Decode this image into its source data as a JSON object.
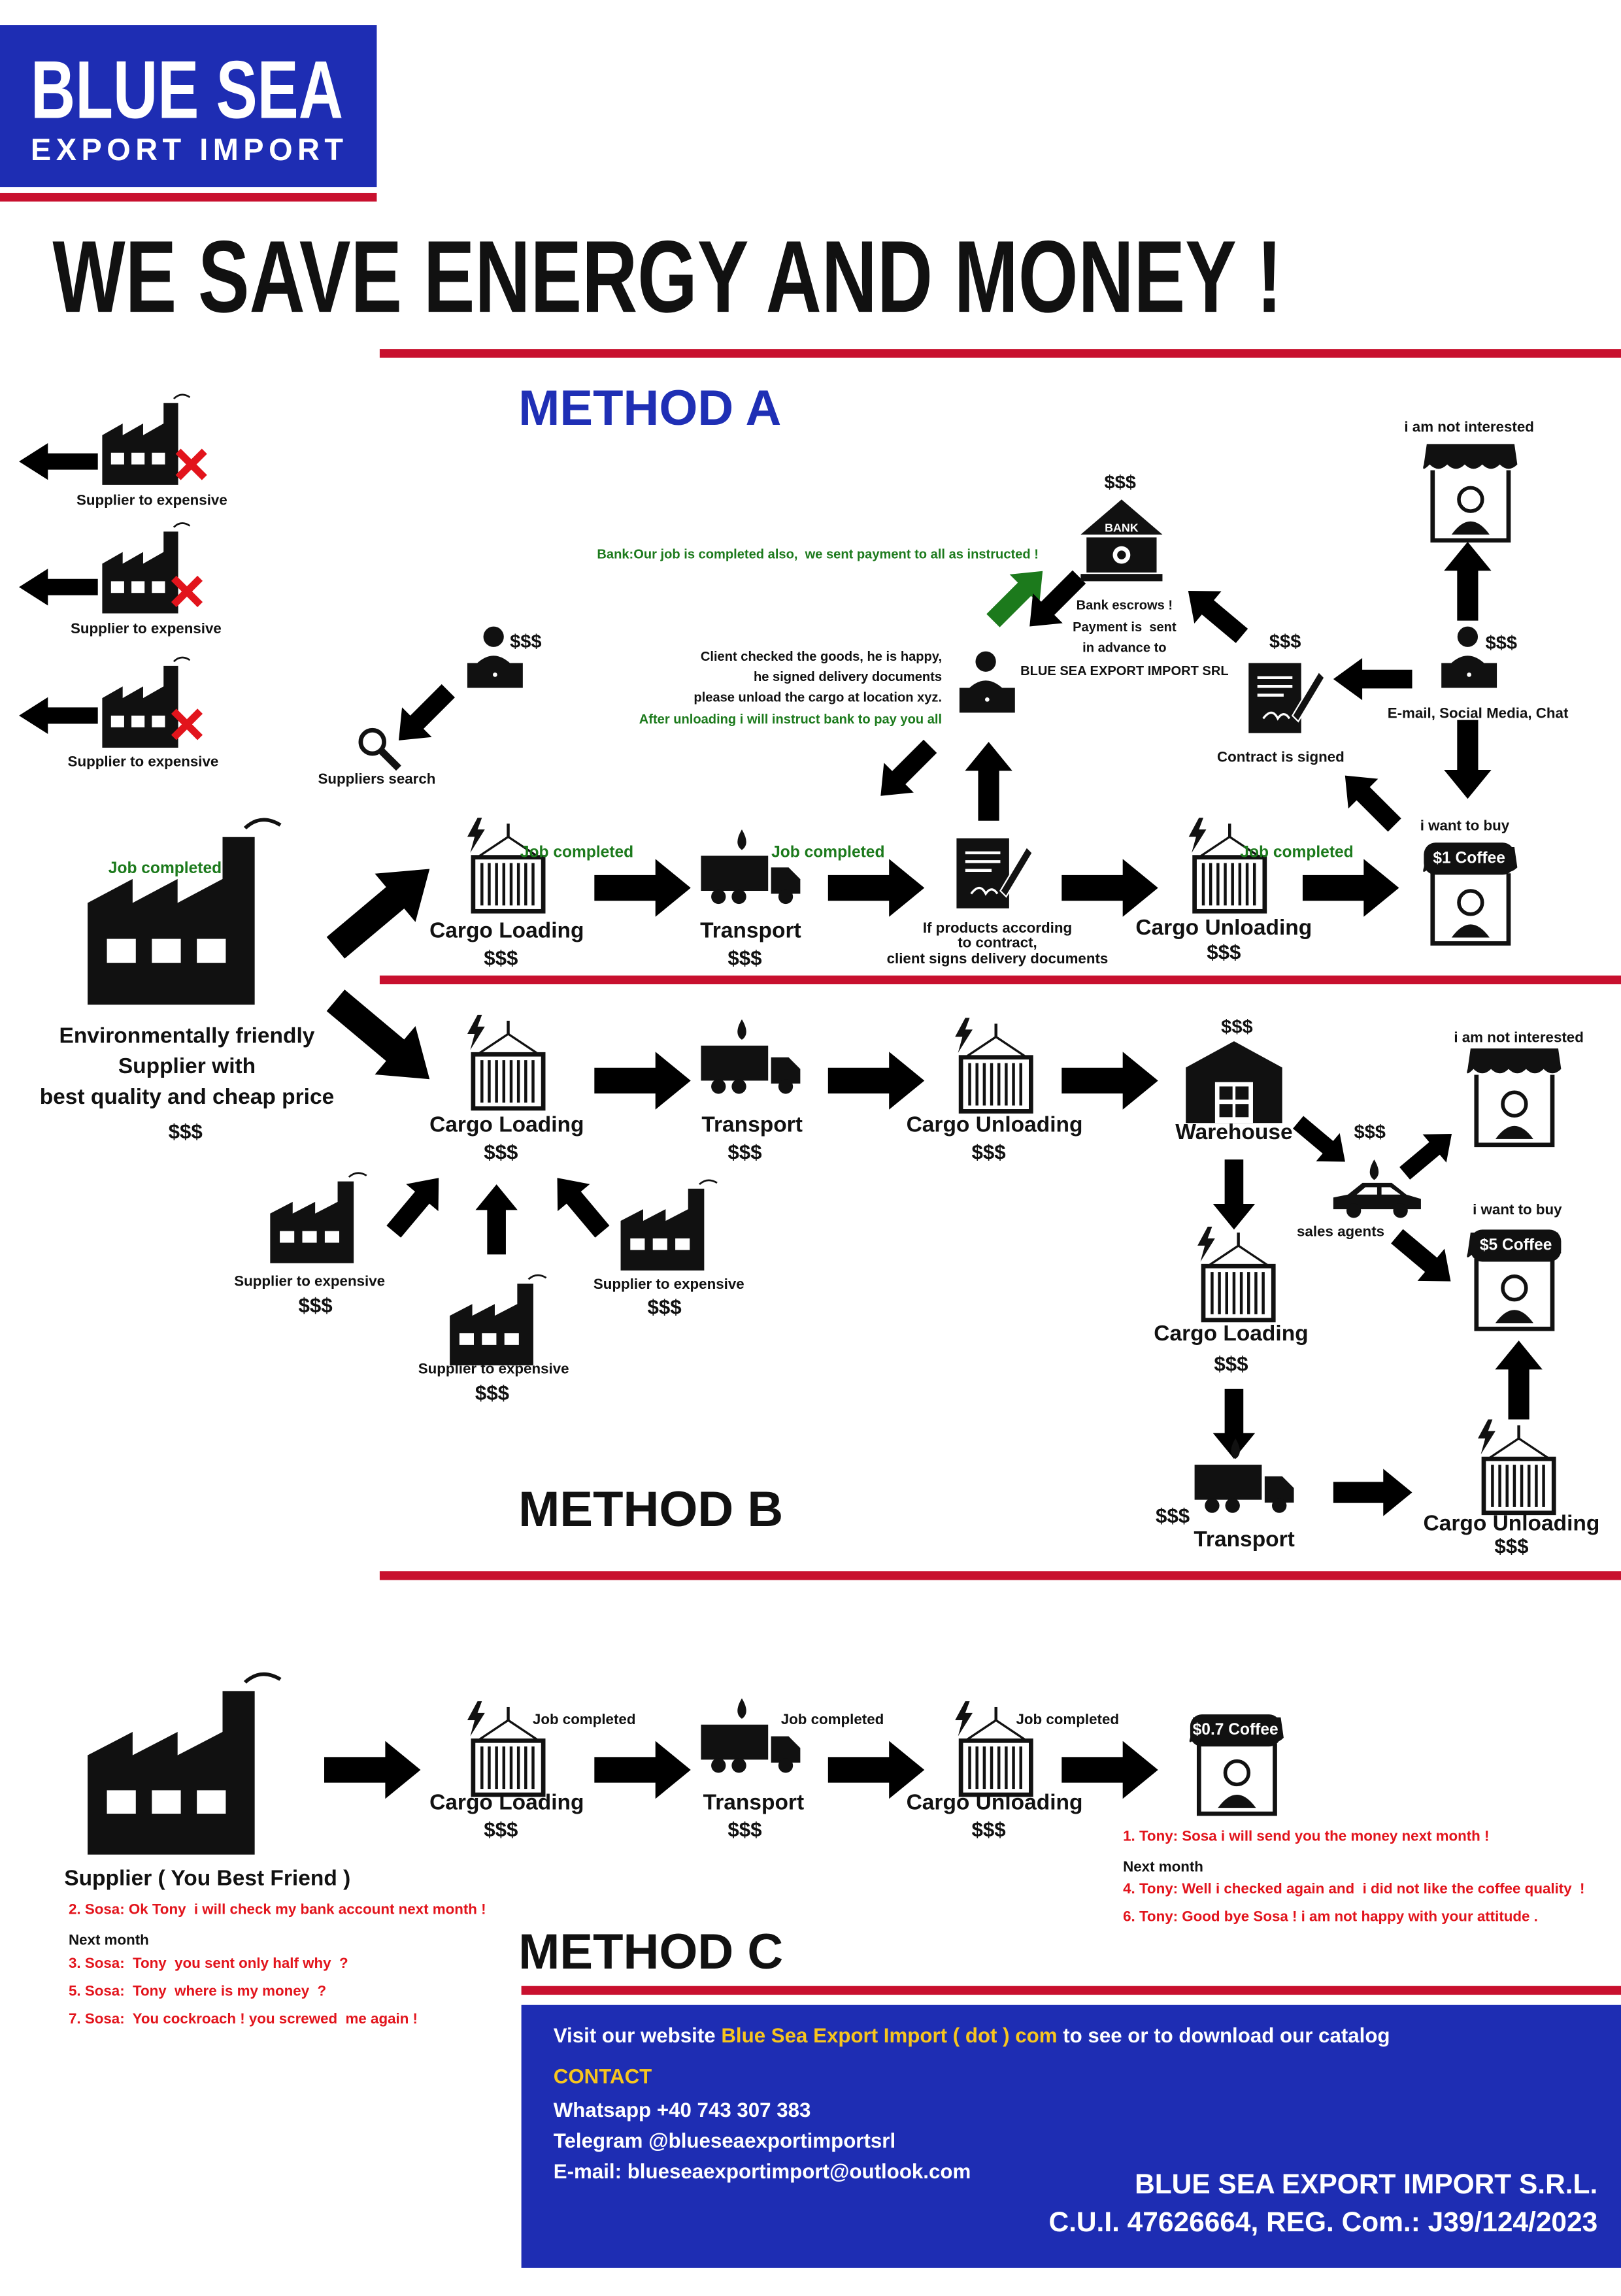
{
  "header": {
    "logo_title": "BLUE SEA",
    "logo_subtitle": "EXPORT IMPORT",
    "headline": "WE SAVE ENERGY AND MONEY !"
  },
  "method_a": {
    "title": "METHOD A",
    "rejected_suppliers": [
      "Supplier to expensive",
      "Supplier to expensive",
      "Supplier to expensive"
    ],
    "search_cost": "$$$",
    "suppliers_search": "Suppliers search",
    "factory_status": "Job completed",
    "factory_lines": [
      "Environmentally friendly",
      "Supplier with",
      "best quality and cheap price"
    ],
    "factory_cost": "$$$",
    "cargo_loading": {
      "status": "Job completed",
      "label": "Cargo Loading",
      "cost": "$$$"
    },
    "transport": {
      "status": "Job completed",
      "label": "Transport",
      "cost": "$$$"
    },
    "delivery_note": [
      "If products according",
      "to contract,",
      "client signs delivery documents"
    ],
    "cargo_unloading": {
      "status": "Job completed",
      "label": "Cargo Unloading",
      "cost": "$$$"
    },
    "buyer": {
      "intent": "i want to buy",
      "price": "$1 Coffee"
    },
    "contract": {
      "cost": "$$$",
      "label": "Contract is signed"
    },
    "channels": {
      "cost": "$$$",
      "label": "E-mail, Social Media, Chat"
    },
    "not_interested": "i am not interested",
    "bank": {
      "cost": "$$$",
      "sign": "BANK",
      "notes": [
        "Bank escrows !",
        "Payment is  sent",
        "in advance to",
        "BLUE SEA EXPORT IMPORT SRL"
      ]
    },
    "bank_message": "Bank:Our job is completed also,  we sent payment to all as instructed !",
    "client_notes": [
      "Client checked the goods, he is happy,",
      "he signed delivery documents",
      "please unload the cargo at location xyz."
    ],
    "client_instruction": "After unloading i will instruct bank to pay you all"
  },
  "method_b": {
    "title": "METHOD B",
    "cargo_loading": {
      "label": "Cargo Loading",
      "cost": "$$$"
    },
    "transport": {
      "label": "Transport",
      "cost": "$$$"
    },
    "cargo_unloading": {
      "label": "Cargo Unloading",
      "cost": "$$$"
    },
    "warehouse": {
      "cost": "$$$",
      "label": "Warehouse"
    },
    "not_interested": "i am not interested",
    "agents": {
      "cost": "$$$",
      "label": "sales agents"
    },
    "buyer": {
      "intent": "i want to buy",
      "price": "$5 Coffee"
    },
    "second_loading": {
      "label": "Cargo Loading",
      "cost": "$$$"
    },
    "second_transport": {
      "cost": "$$$",
      "label": "Transport"
    },
    "second_unloading": {
      "label": "Cargo Unloading",
      "cost": "$$$"
    },
    "suppliers": [
      {
        "label": "Supplier to expensive",
        "cost": "$$$"
      },
      {
        "label": "Supplier to expensive",
        "cost": "$$$"
      },
      {
        "label": "Supplier to expensive",
        "cost": "$$$"
      }
    ]
  },
  "method_c": {
    "title": "METHOD C",
    "supplier": "Supplier ( You Best Friend )",
    "cargo_loading": {
      "status": "Job completed",
      "label": "Cargo Loading",
      "cost": "$$$"
    },
    "transport": {
      "status": "Job completed",
      "label": "Transport",
      "cost": "$$$"
    },
    "cargo_unloading": {
      "status": "Job completed",
      "label": "Cargo Unloading",
      "cost": "$$$"
    },
    "price": "$0.7 Coffee",
    "sosa_dialogue": [
      "2. Sosa: Ok Tony  i will check my bank account next month !",
      "Next month",
      "3. Sosa:  Tony  you sent only half why  ?",
      "5. Sosa:  Tony  where is my money  ?",
      "7. Sosa:  You cockroach ! you screwed  me again !"
    ],
    "tony_dialogue": [
      "1. Tony: Sosa i will send you the money next month !",
      "Next month",
      "4. Tony: Well i checked again and  i did not like the coffee quality  !",
      "6. Tony: Good bye Sosa ! i am not happy with your attitude ."
    ]
  },
  "footer": {
    "visit_prefix": "Visit our website ",
    "website": "Blue Sea Export Import ( dot ) com",
    "visit_suffix": " to see or to download our catalog",
    "contact_heading": "CONTACT",
    "contacts": [
      "Whatsapp +40 743 307 383",
      "Telegram @blueseaexportimportsrl",
      "E-mail: blueseaexportimport@outlook.com"
    ],
    "company": "BLUE SEA EXPORT IMPORT S.R.L.",
    "registration": "C.U.I. 47626664, REG. Com.: J39/124/2023"
  }
}
